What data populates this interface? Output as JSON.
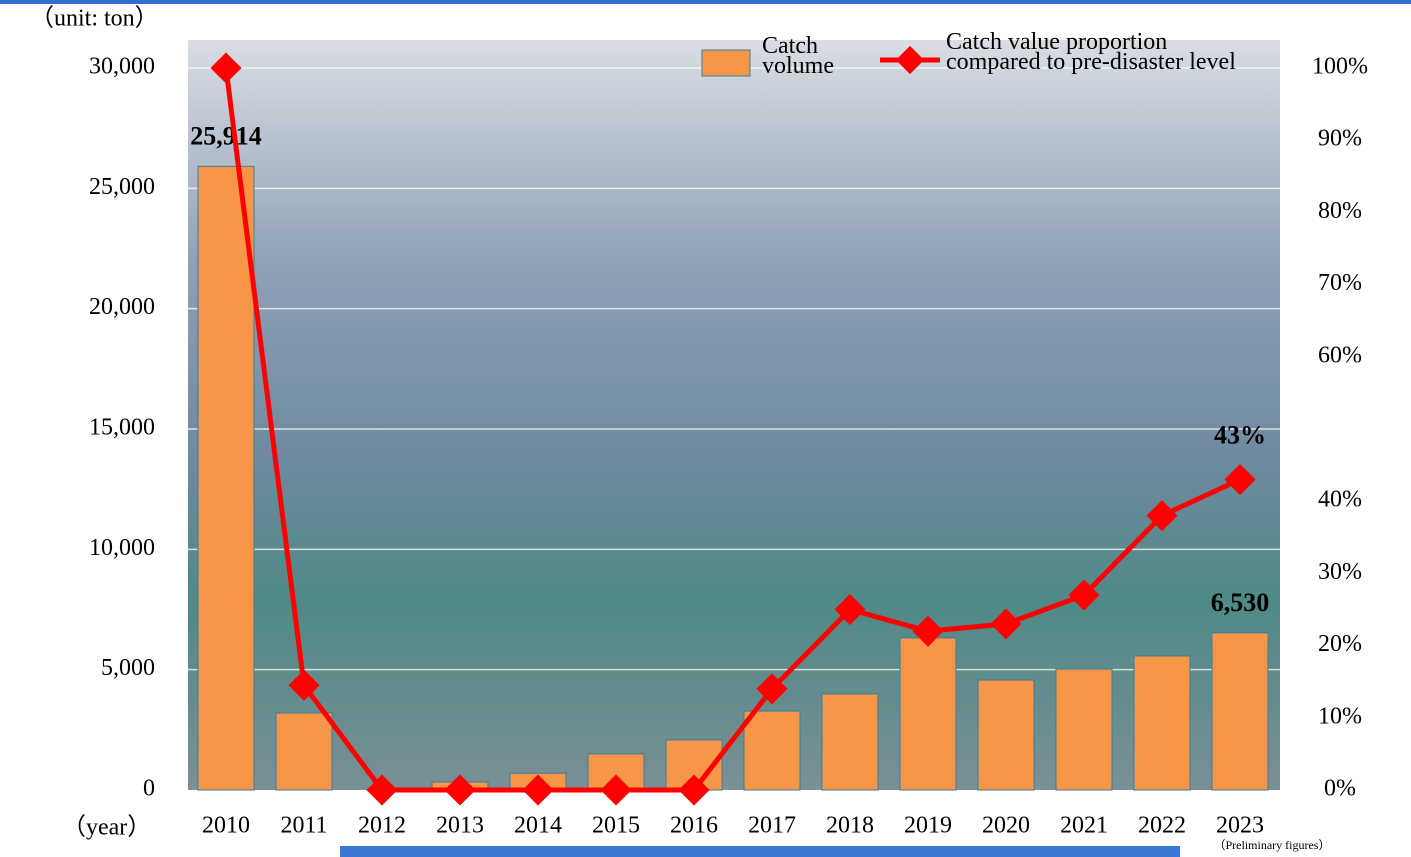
{
  "chart_data": {
    "type": "bar+line",
    "unit_label": "（unit: ton）",
    "x_label": "（year）",
    "note": "（Preliminary figures）",
    "categories": [
      "2010",
      "2011",
      "2012",
      "2013",
      "2014",
      "2015",
      "2016",
      "2017",
      "2018",
      "2019",
      "2020",
      "2021",
      "2022",
      "2023"
    ],
    "series": [
      {
        "name": "Catch volume",
        "color": "#f79646",
        "type": "bar",
        "values": [
          25914,
          3200,
          0,
          330,
          700,
          1500,
          2080,
          3280,
          3990,
          6320,
          4570,
          5030,
          5570,
          6530
        ],
        "value_labels": [
          "25,914",
          null,
          null,
          null,
          null,
          null,
          null,
          null,
          null,
          null,
          null,
          null,
          null,
          "6,530"
        ]
      },
      {
        "name": "Catch value proportion compared to pre-disaster level",
        "color": "#ff0000",
        "type": "line",
        "axis": "y2",
        "values": [
          100,
          14.5,
          0,
          0,
          0,
          0,
          0,
          14,
          25,
          22,
          23,
          27,
          38,
          43
        ],
        "value_labels": [
          null,
          null,
          null,
          null,
          null,
          null,
          null,
          null,
          null,
          null,
          null,
          null,
          null,
          "43%"
        ]
      }
    ],
    "ylim": [
      0,
      30000
    ],
    "yticks": [
      0,
      {
        "value": 5000,
        "label": "5,000"
      },
      {
        "value": 10000,
        "label": "10,000"
      },
      {
        "value": 15000,
        "label": "15,000"
      },
      {
        "value": 20000,
        "label": "20,000"
      },
      {
        "value": 25000,
        "label": "25,000"
      },
      {
        "value": 30000,
        "label": "30,000"
      }
    ],
    "y2lim": [
      0,
      100
    ],
    "y2ticks": [
      {
        "value": 0,
        "label": "0%"
      },
      {
        "value": 10,
        "label": "10%"
      },
      {
        "value": 20,
        "label": "20%"
      },
      {
        "value": 30,
        "label": "30%"
      },
      {
        "value": 40,
        "label": "40%"
      },
      {
        "value": 60,
        "label": "60%"
      },
      {
        "value": 70,
        "label": "70%"
      },
      {
        "value": 80,
        "label": "80%"
      },
      {
        "value": 90,
        "label": "90%"
      },
      {
        "value": 100,
        "label": "100%"
      }
    ],
    "grid": true
  }
}
